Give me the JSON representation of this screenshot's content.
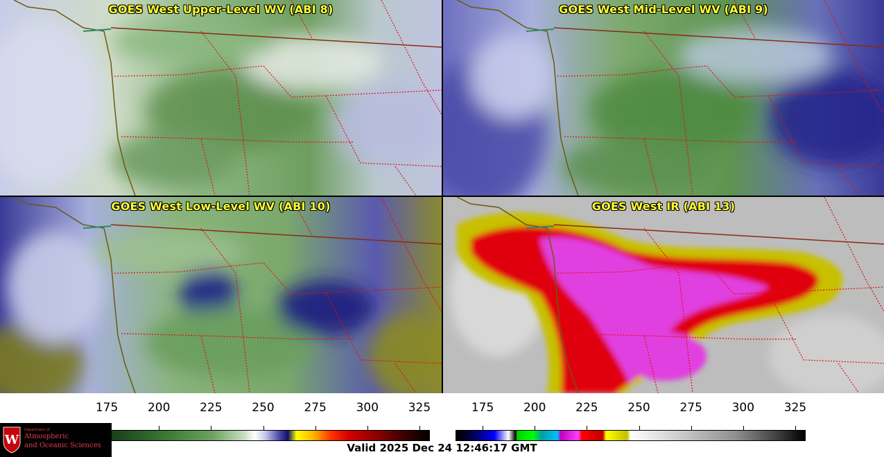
{
  "panels": [
    {
      "id": "upper-wv",
      "title": "GOES West Upper-Level WV (ABI 8)"
    },
    {
      "id": "mid-wv",
      "title": "GOES West Mid-Level WV (ABI 9)"
    },
    {
      "id": "low-wv",
      "title": "GOES West Low-Level WV (ABI 10)"
    },
    {
      "id": "ir",
      "title": "GOES West IR (ABI 13)"
    }
  ],
  "colorbars": {
    "wv": {
      "ticks": [
        "175",
        "200",
        "225",
        "250",
        "275",
        "300",
        "325"
      ],
      "range": [
        162,
        330
      ]
    },
    "ir": {
      "ticks": [
        "175",
        "200",
        "225",
        "250",
        "275",
        "300",
        "325"
      ],
      "range": [
        162,
        330
      ]
    }
  },
  "logo": {
    "line1": "Department of",
    "line2": "Atmospheric",
    "line3": "and Oceanic Sciences",
    "crest_letter": "W"
  },
  "valid_time": "Valid 2025 Dec 24 12:46:17 GMT",
  "colors": {
    "title": "#ffff33",
    "coast": "#6b5a10",
    "border_intl": "#8b2a10",
    "border_state": "#e01010"
  }
}
